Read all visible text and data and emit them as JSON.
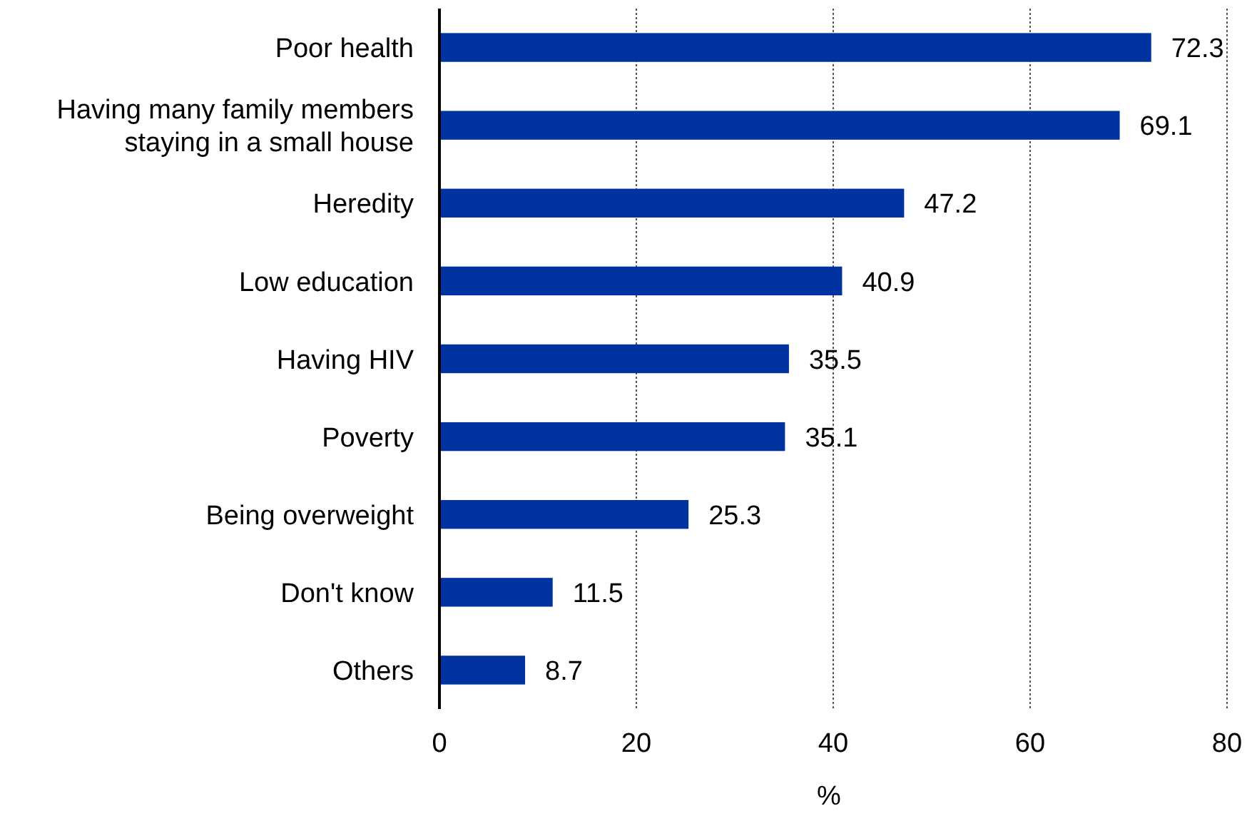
{
  "chart_data": {
    "type": "bar",
    "orientation": "horizontal",
    "categories": [
      "Poor health",
      "Having many family members staying in a small house",
      "Heredity",
      "Low education",
      "Having HIV",
      "Poverty",
      "Being overweight",
      "Don't know",
      "Others"
    ],
    "values": [
      72.3,
      69.1,
      47.2,
      40.9,
      35.5,
      35.1,
      25.3,
      11.5,
      8.7
    ],
    "color": "#0033a0",
    "xlabel": "%",
    "xlim": [
      0,
      80
    ],
    "xticks": [
      0,
      20,
      40,
      60,
      80
    ],
    "grid": "x",
    "data_labels": true
  }
}
